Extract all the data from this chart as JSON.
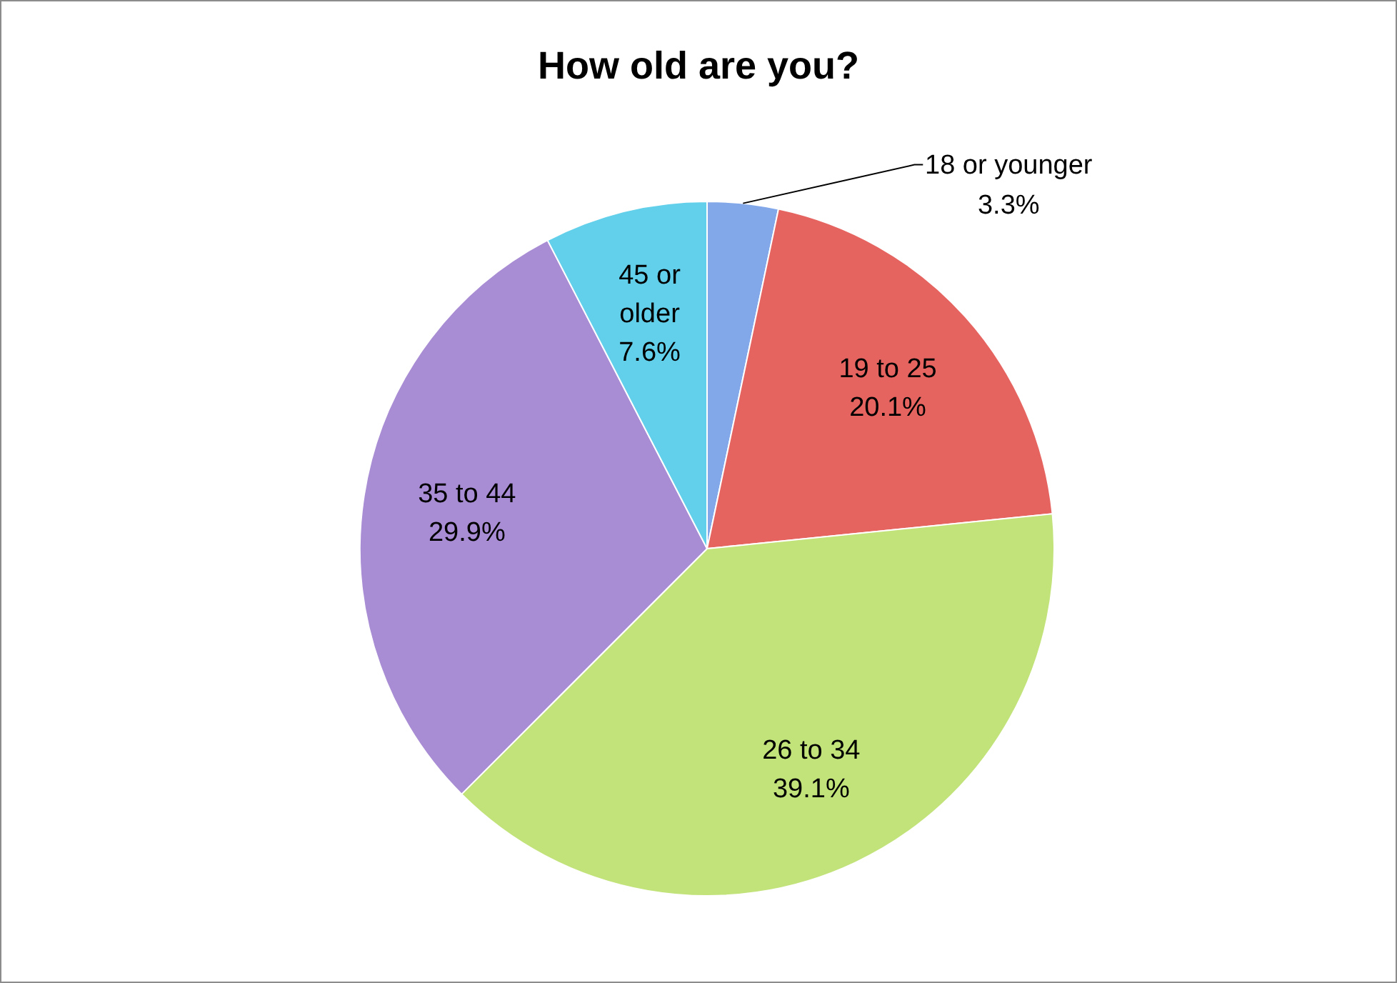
{
  "chart_data": {
    "type": "pie",
    "title": "How old are you?",
    "categories": [
      "18 or younger",
      "19 to 25",
      "26 to 34",
      "35 to 44",
      "45 or older"
    ],
    "values": [
      3.3,
      20.1,
      39.1,
      29.9,
      7.6
    ],
    "value_labels": [
      "3.3%",
      "20.1%",
      "39.1%",
      "29.9%",
      "7.6%"
    ],
    "colors": [
      "#82a8ea",
      "#e66460",
      "#c2e27a",
      "#a88cd4",
      "#62d0ea"
    ]
  }
}
